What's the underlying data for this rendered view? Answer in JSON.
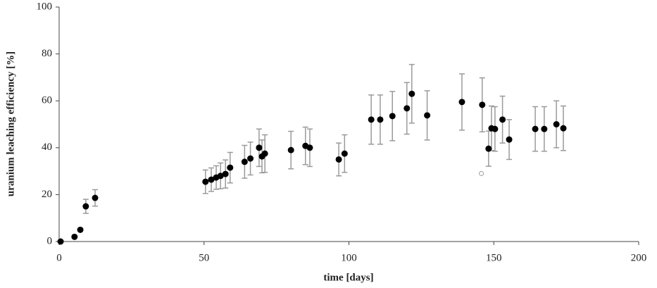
{
  "chart_data": {
    "type": "scatter",
    "xlabel": "time [days]",
    "ylabel": "uranium leaching efficiency [%]",
    "xlim": [
      0,
      200
    ],
    "ylim": [
      0,
      100
    ],
    "xticks": [
      0,
      50,
      100,
      150,
      200
    ],
    "yticks": [
      0,
      20,
      40,
      60,
      80,
      100
    ],
    "color": "#000000",
    "error_color": "#9a9a9a",
    "series": [
      {
        "x": [
          0.5,
          5.3,
          7.3,
          9.2,
          12.4,
          50.5,
          52.5,
          54.2,
          55.7,
          57.4,
          59,
          64,
          66,
          69,
          70,
          71,
          80,
          85,
          86.5,
          96.5,
          98.5,
          107.7,
          110.8,
          115,
          120,
          121.7,
          127,
          139,
          146,
          148.2,
          149.2,
          150.4,
          153,
          155.3,
          164.3,
          167.4,
          171.6,
          174
        ],
        "values": [
          0,
          2,
          5,
          15,
          18.6,
          25.5,
          26.4,
          27.3,
          28,
          28.8,
          31.5,
          34,
          35.4,
          40,
          36.3,
          37.5,
          39,
          40.8,
          40,
          35,
          37.5,
          52,
          52,
          53.5,
          56.8,
          63,
          53.8,
          59.5,
          58.3,
          39.6,
          48.3,
          48,
          52,
          43.5,
          48,
          48,
          50,
          48.3
        ],
        "errors": [
          null,
          null,
          null,
          3,
          3.5,
          5,
          5,
          5,
          5.5,
          6,
          6.5,
          7,
          7,
          8,
          7,
          8,
          8,
          8,
          8,
          7,
          8,
          10.5,
          10.5,
          10.5,
          11,
          12.5,
          10.5,
          12,
          11.5,
          7.5,
          9.5,
          9.5,
          10,
          8.5,
          9.5,
          9.5,
          10,
          9.5
        ]
      }
    ],
    "open_points": {
      "x": [
        145.7
      ],
      "values": [
        29
      ]
    }
  }
}
